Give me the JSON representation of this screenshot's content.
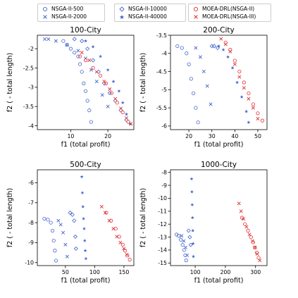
{
  "legend": {
    "groups": [
      [
        {
          "label": "NSGA-II-500",
          "marker": "circle",
          "color": "#4466cc"
        },
        {
          "label": "NSGA-II-2000",
          "marker": "x",
          "color": "#4466cc"
        }
      ],
      [
        {
          "label": "NSGA-II-10000",
          "marker": "diamond",
          "color": "#4466cc"
        },
        {
          "label": "NSGA-II-40000",
          "marker": "star",
          "color": "#4466cc"
        }
      ],
      [
        {
          "label": "MOEA-DRL(NSGA-II)",
          "marker": "circle",
          "color": "#e03030"
        },
        {
          "label": "MOEA-DRL(NSGA-III)",
          "marker": "x",
          "color": "#e03030"
        }
      ]
    ]
  },
  "colors": {
    "nsga": "#4466cc",
    "moea": "#e03030"
  },
  "chart_data": [
    {
      "type": "scatter",
      "title": "100-City",
      "xlabel": "f1 (total profit)",
      "ylabel": "f2 ( - total length)",
      "xlim": [
        1,
        27
      ],
      "ylim": [
        -4.1,
        -1.65
      ],
      "xticks": [
        10,
        20
      ],
      "yticks": [
        -2.0,
        -2.5,
        -3.0,
        -3.5,
        -4.0
      ],
      "series": [
        {
          "name": "NSGA-II-500",
          "marker": "circle",
          "color": "#4466cc",
          "x": [
            8,
            9,
            10,
            11,
            12,
            12.5,
            13,
            13.5,
            14,
            14.5,
            15,
            15.5
          ],
          "y": [
            -1.8,
            -1.9,
            -2.0,
            -2.1,
            -2.2,
            -2.4,
            -2.6,
            -2.9,
            -3.1,
            -3.35,
            -3.6,
            -3.9
          ]
        },
        {
          "name": "NSGA-II-2000",
          "marker": "x",
          "color": "#4466cc",
          "x": [
            3,
            4,
            6,
            9,
            12,
            14,
            15.5,
            17,
            18.5,
            20
          ],
          "y": [
            -1.75,
            -1.75,
            -1.8,
            -1.9,
            -2.05,
            -2.25,
            -2.55,
            -2.85,
            -3.2,
            -3.5
          ]
        },
        {
          "name": "NSGA-II-10000",
          "marker": "diamond",
          "color": "#4466cc",
          "x": [
            11,
            13,
            14.5,
            16,
            17.5,
            19,
            20.5,
            22,
            23.5,
            25
          ],
          "y": [
            -1.75,
            -1.8,
            -2.0,
            -2.3,
            -2.6,
            -2.9,
            -3.15,
            -3.35,
            -3.6,
            -3.85
          ]
        },
        {
          "name": "NSGA-II-40000",
          "marker": "star",
          "color": "#4466cc",
          "x": [
            14,
            16,
            18,
            20,
            21.5,
            23,
            24,
            25,
            26
          ],
          "y": [
            -1.8,
            -1.95,
            -2.2,
            -2.55,
            -2.85,
            -3.1,
            -3.4,
            -3.7,
            -3.95
          ]
        },
        {
          "name": "MOEA-DRL(NSGA-II)",
          "marker": "circle",
          "color": "#e03030",
          "x": [
            12.5,
            14,
            16,
            18,
            19.5,
            21,
            22.5,
            24,
            25.5
          ],
          "y": [
            -2.2,
            -2.3,
            -2.5,
            -2.7,
            -2.9,
            -3.15,
            -3.4,
            -3.65,
            -3.9
          ]
        },
        {
          "name": "MOEA-DRL(NSGA-III)",
          "marker": "x",
          "color": "#e03030",
          "x": [
            13,
            15,
            17,
            19,
            20.5,
            22,
            23.5,
            25,
            26.2
          ],
          "y": [
            -2.1,
            -2.3,
            -2.6,
            -2.85,
            -3.05,
            -3.3,
            -3.55,
            -3.8,
            -3.95
          ]
        }
      ]
    },
    {
      "type": "scatter",
      "title": "200-City",
      "xlabel": "f1 (total profit)",
      "ylabel": "f2 ( - total length)",
      "xlim": [
        12,
        54
      ],
      "ylim": [
        -6.1,
        -3.5
      ],
      "xticks": [
        20,
        30,
        40,
        50
      ],
      "yticks": [
        -3.5,
        -4.0,
        -4.5,
        -5.0,
        -5.5,
        -6.0
      ],
      "series": [
        {
          "name": "NSGA-II-500",
          "marker": "circle",
          "color": "#4466cc",
          "x": [
            15,
            17,
            19,
            20,
            21,
            22,
            23,
            24
          ],
          "y": [
            -3.8,
            -3.85,
            -4.0,
            -4.3,
            -4.7,
            -5.1,
            -5.5,
            -5.9
          ]
        },
        {
          "name": "NSGA-II-2000",
          "marker": "x",
          "color": "#4466cc",
          "x": [
            23,
            25,
            26.5,
            28,
            29.5
          ],
          "y": [
            -3.85,
            -4.1,
            -4.5,
            -4.9,
            -5.4
          ]
        },
        {
          "name": "NSGA-II-10000",
          "marker": "diamond",
          "color": "#4466cc",
          "x": [
            30,
            31,
            32.5
          ],
          "y": [
            -3.8,
            -3.8,
            -3.85
          ]
        },
        {
          "name": "NSGA-II-40000",
          "marker": "star",
          "color": "#4466cc",
          "x": [
            33,
            35,
            37,
            39,
            41,
            43,
            45,
            46
          ],
          "y": [
            -3.8,
            -3.9,
            -4.1,
            -4.4,
            -4.8,
            -5.2,
            -5.6,
            -5.9
          ]
        },
        {
          "name": "MOEA-DRL(NSGA-II)",
          "marker": "circle",
          "color": "#e03030",
          "x": [
            36,
            38,
            40,
            42,
            44,
            46,
            48,
            50,
            52
          ],
          "y": [
            -3.7,
            -3.9,
            -4.2,
            -4.5,
            -4.8,
            -5.1,
            -5.4,
            -5.65,
            -5.85
          ]
        },
        {
          "name": "MOEA-DRL(NSGA-III)",
          "marker": "x",
          "color": "#e03030",
          "x": [
            34,
            36,
            38,
            40,
            42,
            44,
            46,
            48,
            50
          ],
          "y": [
            -3.6,
            -3.75,
            -3.95,
            -4.3,
            -4.65,
            -4.95,
            -5.25,
            -5.5,
            -5.8
          ]
        }
      ]
    },
    {
      "type": "scatter",
      "title": "500-City",
      "xlabel": "f1 (total profit)",
      "ylabel": "f2 ( - total length)",
      "xlim": [
        2,
        167
      ],
      "ylim": [
        -10.15,
        -5.35
      ],
      "xticks": [
        50,
        100,
        150
      ],
      "yticks": [
        -6,
        -7,
        -8,
        -9,
        -10
      ],
      "series": [
        {
          "name": "NSGA-II-500",
          "marker": "circle",
          "color": "#4466cc",
          "x": [
            14,
            20,
            25,
            28,
            30,
            32,
            34
          ],
          "y": [
            -7.8,
            -7.85,
            -8.0,
            -8.4,
            -8.9,
            -9.4,
            -9.9
          ]
        },
        {
          "name": "NSGA-II-2000",
          "marker": "x",
          "color": "#4466cc",
          "x": [
            38,
            42,
            46,
            50,
            53
          ],
          "y": [
            -7.9,
            -8.1,
            -8.5,
            -9.1,
            -9.7
          ]
        },
        {
          "name": "NSGA-II-10000",
          "marker": "diamond",
          "color": "#4466cc",
          "x": [
            58,
            62,
            65,
            67,
            68
          ],
          "y": [
            -7.5,
            -7.6,
            -7.9,
            -8.7,
            -9.3
          ]
        },
        {
          "name": "NSGA-II-40000",
          "marker": "star",
          "color": "#4466cc",
          "x": [
            78,
            79,
            80,
            81,
            82,
            83,
            84,
            85
          ],
          "y": [
            -5.7,
            -6.5,
            -7.2,
            -7.8,
            -8.3,
            -8.9,
            -9.4,
            -9.8
          ]
        },
        {
          "name": "MOEA-DRL(NSGA-II)",
          "marker": "circle",
          "color": "#e03030",
          "x": [
            120,
            128,
            136,
            142,
            148,
            152,
            156,
            160
          ],
          "y": [
            -7.5,
            -7.9,
            -8.3,
            -8.7,
            -9.1,
            -9.4,
            -9.65,
            -9.85
          ]
        },
        {
          "name": "MOEA-DRL(NSGA-III)",
          "marker": "x",
          "color": "#e03030",
          "x": [
            112,
            118,
            125,
            132,
            138,
            144,
            150,
            155
          ],
          "y": [
            -7.2,
            -7.5,
            -7.9,
            -8.3,
            -8.7,
            -9.0,
            -9.3,
            -9.6
          ]
        }
      ]
    },
    {
      "type": "scatter",
      "title": "1000-City",
      "xlabel": "f1 (total profit)",
      "ylabel": "f2 ( - total length)",
      "xlim": [
        18,
        338
      ],
      "ylim": [
        -15.2,
        -7.8
      ],
      "xticks": [
        100,
        200,
        300
      ],
      "yticks": [
        -8,
        -9,
        -10,
        -11,
        -12,
        -13,
        -14,
        -15
      ],
      "series": [
        {
          "name": "NSGA-II-500",
          "marker": "circle",
          "color": "#4466cc",
          "x": [
            38,
            45,
            52,
            58,
            63,
            67,
            70
          ],
          "y": [
            -12.8,
            -12.9,
            -13.2,
            -13.6,
            -14.0,
            -14.4,
            -14.8
          ]
        },
        {
          "name": "NSGA-II-2000",
          "marker": "x",
          "color": "#4466cc",
          "x": [
            55,
            62,
            68,
            73
          ],
          "y": [
            -12.9,
            -13.3,
            -13.8,
            -14.4
          ]
        },
        {
          "name": "NSGA-II-10000",
          "marker": "diamond",
          "color": "#4466cc",
          "x": [
            78,
            82,
            85
          ],
          "y": [
            -12.5,
            -13.0,
            -13.6
          ]
        },
        {
          "name": "NSGA-II-40000",
          "marker": "star",
          "color": "#4466cc",
          "x": [
            88,
            89,
            90,
            91,
            92,
            93,
            94
          ],
          "y": [
            -8.5,
            -9.5,
            -10.5,
            -11.5,
            -12.5,
            -13.5,
            -14.5
          ]
        },
        {
          "name": "MOEA-DRL(NSGA-II)",
          "marker": "circle",
          "color": "#e03030",
          "x": [
            255,
            265,
            275,
            285,
            292,
            298,
            304,
            310
          ],
          "y": [
            -11.5,
            -12.0,
            -12.5,
            -13.0,
            -13.4,
            -13.8,
            -14.2,
            -14.6
          ]
        },
        {
          "name": "MOEA-DRL(NSGA-III)",
          "marker": "x",
          "color": "#e03030",
          "x": [
            245,
            252,
            260,
            270,
            280,
            290,
            298,
            306,
            314
          ],
          "y": [
            -10.4,
            -11.0,
            -11.6,
            -12.2,
            -12.8,
            -13.3,
            -13.8,
            -14.3,
            -14.8
          ]
        }
      ]
    }
  ]
}
